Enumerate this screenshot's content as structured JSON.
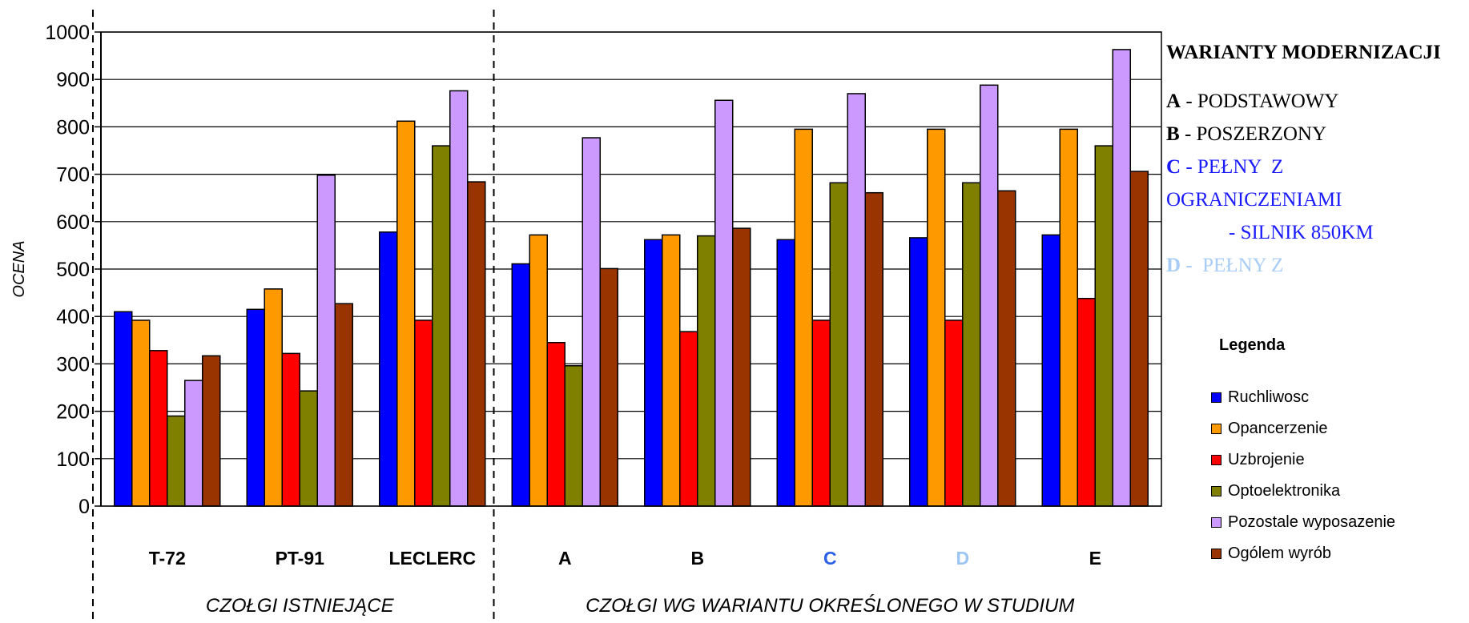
{
  "chart_data": {
    "type": "bar",
    "ylabel": "OCENA",
    "ylim": [
      0,
      1000
    ],
    "yticks": [
      "0",
      "100",
      "200",
      "300",
      "400",
      "500",
      "600",
      "700",
      "800",
      "900",
      "1000"
    ],
    "grid": true,
    "legend_position": "right",
    "categories": [
      "T-72",
      "PT-91",
      "LECLERC",
      "A",
      "B",
      "C",
      "D",
      "E"
    ],
    "category_colors": [
      "#000000",
      "#000000",
      "#000000",
      "#000000",
      "#000000",
      "#2a5fe8",
      "#9cc6f4",
      "#000000"
    ],
    "groups": [
      {
        "label": "CZOŁGI   ISTNIEJĄCE",
        "categories": [
          "T-72",
          "PT-91",
          "LECLERC"
        ]
      },
      {
        "label": "CZOŁGI  WG  WARIANTU  OKREŚLONEGO  W  STUDIUM",
        "categories": [
          "A",
          "B",
          "C",
          "D",
          "E"
        ]
      }
    ],
    "series": [
      {
        "name": "Ruchliwosc",
        "color": "#0000ff",
        "values": [
          410,
          415,
          578,
          511,
          562,
          562,
          566,
          572
        ]
      },
      {
        "name": "Opancerzenie",
        "color": "#ff9900",
        "values": [
          392,
          458,
          812,
          572,
          572,
          795,
          795,
          795
        ]
      },
      {
        "name": "Uzbrojenie",
        "color": "#ff0000",
        "values": [
          328,
          322,
          392,
          345,
          368,
          392,
          392,
          438
        ]
      },
      {
        "name": "Optoelektronika",
        "color": "#808000",
        "values": [
          190,
          243,
          760,
          296,
          570,
          682,
          682,
          760
        ]
      },
      {
        "name": "Pozostale wyposazenie",
        "color": "#cc99ff",
        "values": [
          265,
          698,
          876,
          777,
          856,
          870,
          888,
          963
        ]
      },
      {
        "name": "Ogólem wyrób",
        "color": "#993300",
        "values": [
          317,
          427,
          684,
          501,
          586,
          661,
          665,
          706
        ]
      }
    ]
  },
  "side_panel": {
    "title": "WARIANTY MODERNIZACJI",
    "variants": [
      {
        "letter": "A",
        "text": " - PODSTAWOWY",
        "color": "#000000"
      },
      {
        "letter": "B",
        "text": " - POSZERZONY",
        "color": "#000000"
      },
      {
        "letter": "C",
        "text": " - PEŁNY  Z",
        "color": "#1a1aff"
      },
      {
        "letter": "",
        "text": "OGRANICZENIAMI",
        "color": "#1a1aff"
      },
      {
        "letter": "",
        "text": "- SILNIK 850KM",
        "color": "#1a1aff",
        "indent": true
      },
      {
        "letter": "D",
        "text": " -  PEŁNY Z",
        "color": "#a8ccf6"
      }
    ]
  },
  "legend": {
    "title": "Legenda"
  }
}
